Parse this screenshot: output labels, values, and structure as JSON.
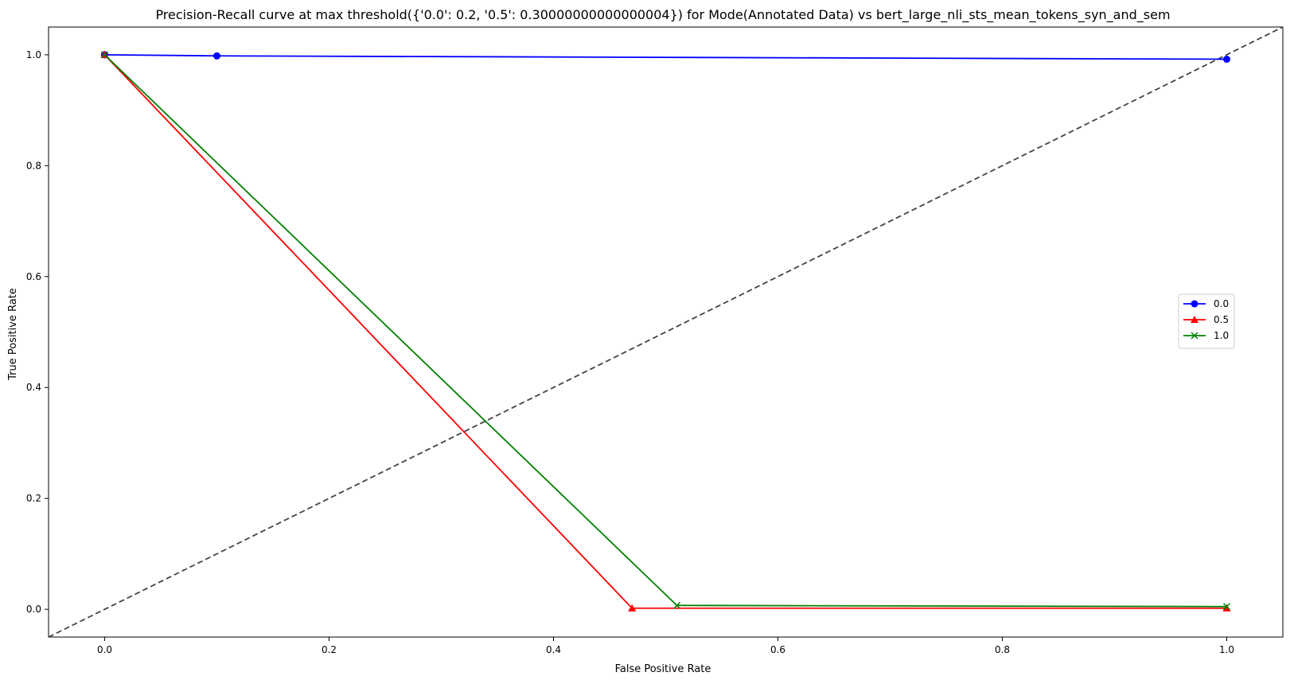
{
  "chart_data": {
    "type": "line",
    "title": "Precision-Recall curve at max threshold({'0.0': 0.2, '0.5': 0.30000000000000004}) for Mode(Annotated Data) vs bert_large_nli_sts_mean_tokens_syn_and_sem",
    "xlabel": "False Positive Rate",
    "ylabel": "True Positive Rate",
    "xlim": [
      -0.05,
      1.05
    ],
    "ylim": [
      -0.05,
      1.05
    ],
    "xticks": [
      0.0,
      0.2,
      0.4,
      0.6,
      0.8,
      1.0
    ],
    "yticks": [
      0.0,
      0.2,
      0.4,
      0.6,
      0.8,
      1.0
    ],
    "x_tick_labels": [
      "0.0",
      "0.2",
      "0.4",
      "0.6",
      "0.8",
      "1.0"
    ],
    "y_tick_labels": [
      "0.0",
      "0.2",
      "0.4",
      "0.6",
      "0.8",
      "1.0"
    ],
    "grid": false,
    "legend_position": "center-right",
    "series": [
      {
        "name": "0.0",
        "color": "#0000ff",
        "marker": "circle",
        "x": [
          0.0,
          0.0,
          0.1,
          1.0
        ],
        "y": [
          1.0,
          1.0,
          0.998,
          0.992
        ]
      },
      {
        "name": "0.5",
        "color": "#ff0000",
        "marker": "triangle",
        "x": [
          0.0,
          0.47,
          1.0
        ],
        "y": [
          1.0,
          0.002,
          0.002
        ]
      },
      {
        "name": "1.0",
        "color": "#008000",
        "marker": "x",
        "x": [
          0.0,
          0.51,
          1.0
        ],
        "y": [
          1.0,
          0.007,
          0.005
        ]
      }
    ],
    "reference_line": {
      "style": "dashed",
      "color": "#444444",
      "x": [
        -0.05,
        1.05
      ],
      "y": [
        -0.05,
        1.05
      ]
    }
  }
}
